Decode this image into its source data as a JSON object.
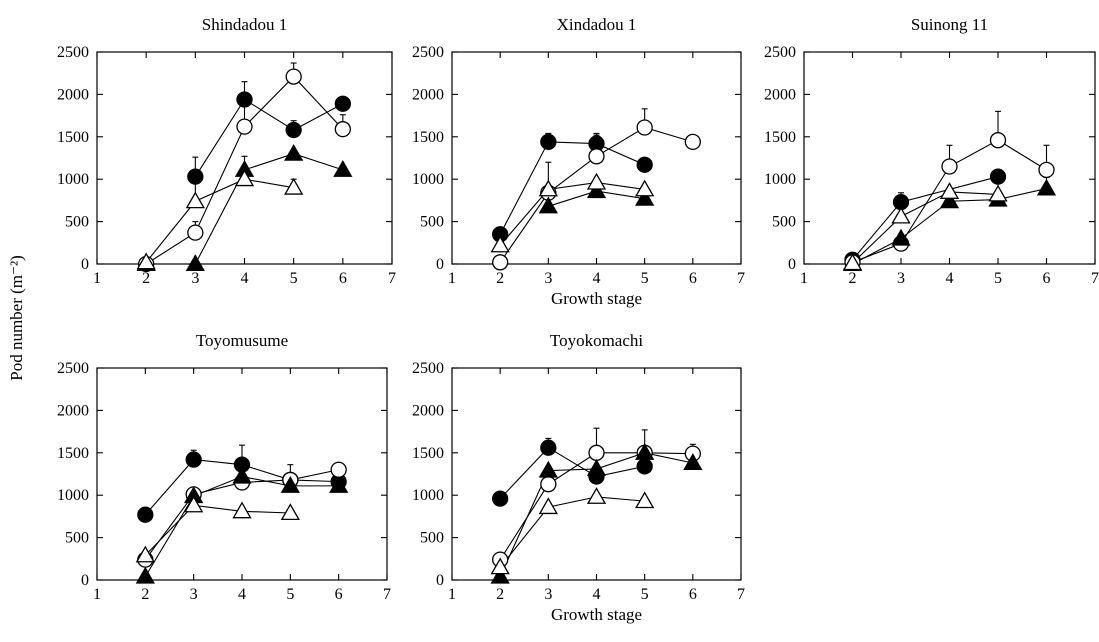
{
  "figure": {
    "ylabel": "Pod number (m⁻²)",
    "xlabel": "Growth stage"
  },
  "chart_data": [
    {
      "type": "scatter",
      "title": "Shindadou 1",
      "xlabel": "",
      "ylabel": "",
      "xlim": [
        1,
        7
      ],
      "ylim": [
        0,
        2500
      ],
      "xticks": [
        1,
        2,
        3,
        4,
        5,
        6,
        7
      ],
      "yticks": [
        0,
        500,
        1000,
        1500,
        2000,
        2500
      ],
      "grid": false,
      "series": [
        {
          "marker": "filled-circle",
          "x": [
            3,
            4,
            5,
            6
          ],
          "y": [
            1030,
            1940,
            1580,
            1890
          ],
          "err": [
            0,
            0,
            110,
            0
          ]
        },
        {
          "marker": "open-circle",
          "x": [
            2,
            3,
            4,
            5,
            6
          ],
          "y": [
            0,
            370,
            1620,
            2210,
            1590
          ],
          "err": [
            0,
            130,
            530,
            160,
            170
          ]
        },
        {
          "marker": "filled-triangle",
          "x": [
            2,
            3,
            4,
            5,
            6
          ],
          "y": [
            0,
            0,
            1110,
            1300,
            1110
          ],
          "err": [
            0,
            0,
            0,
            0,
            0
          ]
        },
        {
          "marker": "open-triangle",
          "x": [
            2,
            3,
            4,
            5
          ],
          "y": [
            20,
            740,
            1000,
            900
          ],
          "err": [
            0,
            520,
            270,
            100
          ]
        }
      ]
    },
    {
      "type": "scatter",
      "title": "Xindadou 1",
      "xlabel": "Growth stage",
      "ylabel": "",
      "xlim": [
        1,
        7
      ],
      "ylim": [
        0,
        2500
      ],
      "xticks": [
        1,
        2,
        3,
        4,
        5,
        6,
        7
      ],
      "yticks": [
        0,
        500,
        1000,
        1500,
        2000,
        2500
      ],
      "grid": false,
      "series": [
        {
          "marker": "filled-circle",
          "x": [
            2,
            3,
            4,
            5
          ],
          "y": [
            350,
            1440,
            1420,
            1170
          ],
          "err": [
            0,
            100,
            120,
            0
          ]
        },
        {
          "marker": "open-circle",
          "x": [
            2,
            3,
            4,
            5,
            6
          ],
          "y": [
            20,
            840,
            1270,
            1610,
            1440
          ],
          "err": [
            0,
            0,
            250,
            220,
            0
          ]
        },
        {
          "marker": "filled-triangle",
          "x": [
            3,
            4,
            5
          ],
          "y": [
            680,
            860,
            770
          ],
          "err": [
            240,
            120,
            120
          ]
        },
        {
          "marker": "open-triangle",
          "x": [
            2,
            3,
            4,
            5
          ],
          "y": [
            220,
            880,
            960,
            880
          ],
          "err": [
            0,
            320,
            0,
            0
          ]
        }
      ]
    },
    {
      "type": "scatter",
      "title": "Suinong 11",
      "xlabel": "",
      "ylabel": "",
      "xlim": [
        1,
        7
      ],
      "ylim": [
        0,
        2500
      ],
      "xticks": [
        1,
        2,
        3,
        4,
        5,
        6,
        7
      ],
      "yticks": [
        0,
        500,
        1000,
        1500,
        2000,
        2500
      ],
      "grid": false,
      "series": [
        {
          "marker": "filled-circle",
          "x": [
            2,
            3,
            5
          ],
          "y": [
            50,
            730,
            1030
          ],
          "err": [
            0,
            110,
            0
          ]
        },
        {
          "marker": "open-circle",
          "x": [
            2,
            3,
            4,
            5,
            6
          ],
          "y": [
            20,
            240,
            1150,
            1460,
            1110
          ],
          "err": [
            0,
            0,
            250,
            340,
            290
          ]
        },
        {
          "marker": "filled-triangle",
          "x": [
            2,
            3,
            4,
            5,
            6
          ],
          "y": [
            0,
            300,
            740,
            760,
            890
          ],
          "err": [
            0,
            0,
            0,
            220,
            130
          ]
        },
        {
          "marker": "open-triangle",
          "x": [
            2,
            3,
            4,
            5
          ],
          "y": [
            10,
            560,
            850,
            820
          ],
          "err": [
            0,
            0,
            0,
            0
          ]
        }
      ]
    },
    {
      "type": "scatter",
      "title": "Toyomusume",
      "xlabel": "",
      "ylabel": "",
      "xlim": [
        1,
        7
      ],
      "ylim": [
        0,
        2500
      ],
      "xticks": [
        1,
        2,
        3,
        4,
        5,
        6,
        7
      ],
      "yticks": [
        0,
        500,
        1000,
        1500,
        2000,
        2500
      ],
      "grid": false,
      "series": [
        {
          "marker": "filled-circle",
          "x": [
            2,
            3,
            4,
            5,
            6
          ],
          "y": [
            770,
            1420,
            1360,
            1180,
            1160
          ],
          "err": [
            80,
            110,
            230,
            180,
            0
          ]
        },
        {
          "marker": "open-circle",
          "x": [
            2,
            3,
            4,
            5,
            6
          ],
          "y": [
            240,
            1010,
            1150,
            1180,
            1300
          ],
          "err": [
            0,
            0,
            0,
            0,
            0
          ]
        },
        {
          "marker": "filled-triangle",
          "x": [
            2,
            3,
            4,
            5,
            6
          ],
          "y": [
            40,
            990,
            1220,
            1110,
            1110
          ],
          "err": [
            0,
            0,
            0,
            0,
            0
          ]
        },
        {
          "marker": "open-triangle",
          "x": [
            2,
            3,
            4,
            5
          ],
          "y": [
            290,
            880,
            810,
            790
          ],
          "err": [
            0,
            0,
            0,
            0
          ]
        }
      ]
    },
    {
      "type": "scatter",
      "title": "Toyokomachi",
      "xlabel": "Growth stage",
      "ylabel": "",
      "xlim": [
        1,
        7
      ],
      "ylim": [
        0,
        2500
      ],
      "xticks": [
        1,
        2,
        3,
        4,
        5,
        6,
        7
      ],
      "yticks": [
        0,
        500,
        1000,
        1500,
        2000,
        2500
      ],
      "grid": false,
      "series": [
        {
          "marker": "filled-circle",
          "x": [
            2,
            3,
            4,
            5
          ],
          "y": [
            960,
            1560,
            1220,
            1340
          ],
          "err": [
            0,
            110,
            0,
            0
          ]
        },
        {
          "marker": "open-circle",
          "x": [
            2,
            3,
            4,
            5,
            6
          ],
          "y": [
            240,
            1130,
            1500,
            1500,
            1490
          ],
          "err": [
            0,
            0,
            290,
            270,
            110
          ]
        },
        {
          "marker": "filled-triangle",
          "x": [
            2,
            3,
            4,
            5,
            6
          ],
          "y": [
            40,
            1290,
            1310,
            1500,
            1380
          ],
          "err": [
            0,
            0,
            0,
            0,
            0
          ]
        },
        {
          "marker": "open-triangle",
          "x": [
            2,
            3,
            4,
            5
          ],
          "y": [
            150,
            860,
            980,
            930
          ],
          "err": [
            0,
            0,
            0,
            0
          ]
        }
      ]
    }
  ]
}
